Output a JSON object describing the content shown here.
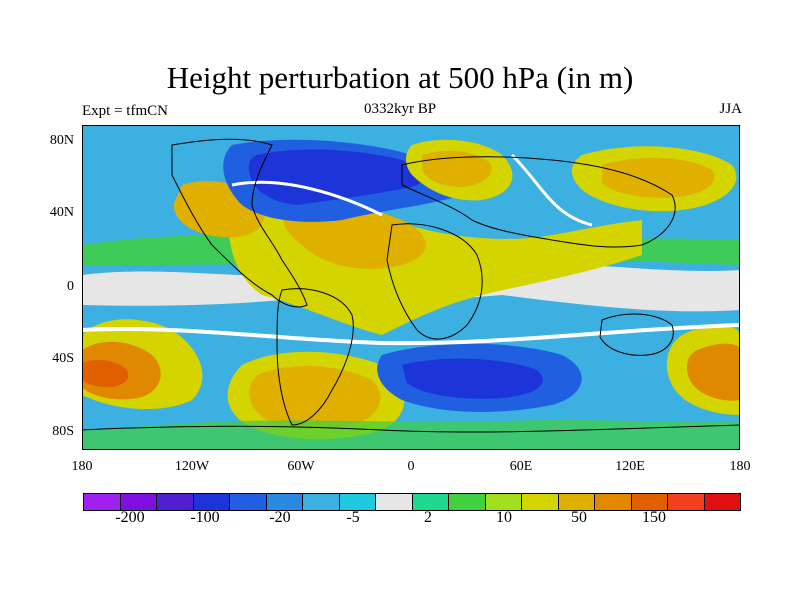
{
  "title": "Height perturbation at 500 hPa (in m)",
  "left_string": "Expt = tfmCN",
  "center_string": "0332kyr BP",
  "right_string": "JJA",
  "y_ticks": [
    "80N",
    "40N",
    "0",
    "40S",
    "80S"
  ],
  "x_ticks": [
    "180",
    "120W",
    "60W",
    "0",
    "60E",
    "120E",
    "180"
  ],
  "colorbar": {
    "colors": [
      "#a020f0",
      "#7f10e0",
      "#4f20d0",
      "#1c34d8",
      "#1f5fe0",
      "#2a8ae0",
      "#3cb0e0",
      "#20c8e0",
      "#e6e6e6",
      "#20d890",
      "#40d040",
      "#a0e020",
      "#d4d400",
      "#e0b000",
      "#e08800",
      "#e06000",
      "#f04020",
      "#e01010"
    ],
    "labels": [
      "-200",
      "-100",
      "-20",
      "-5",
      "2",
      "10",
      "50",
      "150"
    ]
  }
}
